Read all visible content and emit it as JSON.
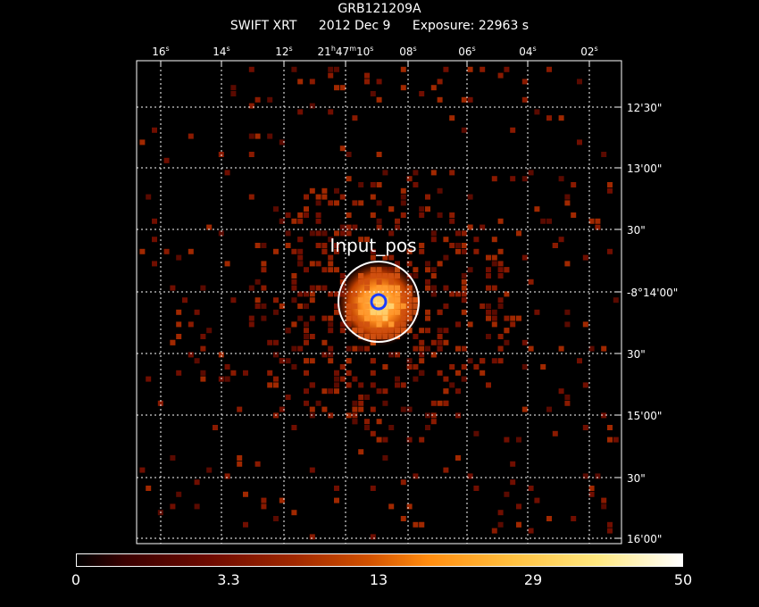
{
  "header": {
    "object": "GRB121209A",
    "instrument": "SWIFT XRT",
    "date": "2012 Dec  9",
    "exposure": "Exposure: 22963 s"
  },
  "axes": {
    "ra_ticks": [
      "16s",
      "14s",
      "12s",
      "21h47m10s",
      "08s",
      "06s",
      "04s",
      "02s"
    ],
    "dec_ticks": [
      "12'30\"",
      "13'00\"",
      "30\"",
      "-8°14'00\"",
      "30\"",
      "15'00\"",
      "30\"",
      "16'00\""
    ]
  },
  "region_label": "Input_pos",
  "colorbar": {
    "labels": [
      "0",
      "3.3",
      "13",
      "29",
      "50"
    ]
  }
}
